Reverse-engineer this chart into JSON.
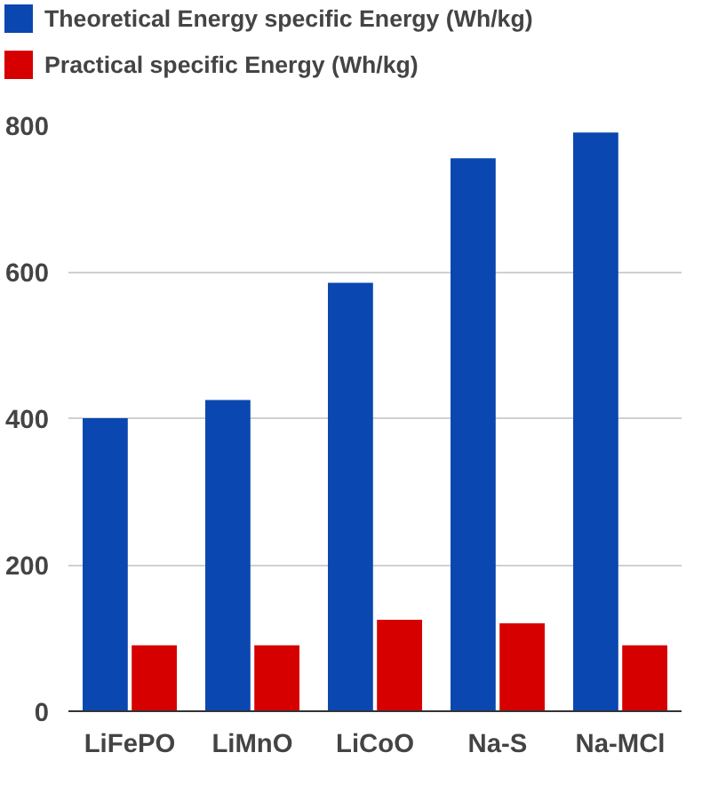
{
  "chart_data": {
    "type": "bar",
    "categories": [
      "LiFePO",
      "LiMnO",
      "LiCoO",
      "Na-S",
      "Na-MCl"
    ],
    "series": [
      {
        "name": "Theoretical Energy specific Energy (Wh/kg)",
        "color": "#0b47b0",
        "values": [
          400,
          425,
          585,
          755,
          790
        ]
      },
      {
        "name": "Practical specific Energy (Wh/kg)",
        "color": "#d60000",
        "values": [
          90,
          90,
          125,
          120,
          90
        ]
      }
    ],
    "ylim": [
      0,
      800
    ],
    "yticks": [
      0,
      200,
      400,
      600,
      800
    ],
    "grid": "y",
    "legend": "top"
  }
}
